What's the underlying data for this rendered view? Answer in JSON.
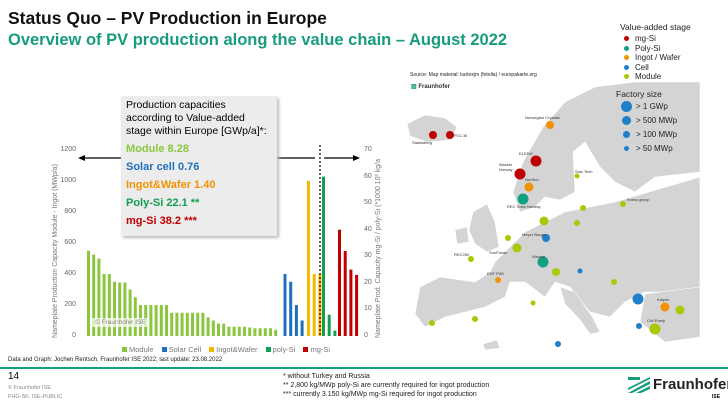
{
  "header": {
    "title": "Status Quo – PV Production in Europe",
    "subtitle": "Overview of PV production along the value chain – August 2022"
  },
  "infobox": {
    "heading": "Production capacities according to Value-added stage within Europe [GWp/a]*:",
    "module": "Module 8.28",
    "cell": "Solar cell 0.76",
    "ingot": "Ingot&Wafer 1.40",
    "poly": "Poly-Si 22.1 **",
    "mgsi": "mg-Si 38.2 ***"
  },
  "chart_data": {
    "type": "bar",
    "ylabel": "Nameplate Production Capacity Module - Ingot (MWp/a)",
    "y2label": "Nameplate Prod. Capacity mg-Si / poly-Si (*1000 10³ kg/a",
    "ylim": [
      0,
      1200
    ],
    "yticks": [
      "0",
      "200",
      "400",
      "600",
      "800",
      "1000",
      "1200"
    ],
    "y2lim": [
      0,
      70
    ],
    "y2ticks": [
      "0",
      "10",
      "20",
      "30",
      "40",
      "50",
      "60",
      "70"
    ],
    "watermark": "© Fraunhofer ISE",
    "legend_position": "bottom",
    "series": [
      {
        "name": "Module",
        "axis": "left",
        "color": "#8cc63f",
        "values": [
          550,
          525,
          500,
          400,
          400,
          350,
          345,
          345,
          300,
          250,
          200,
          200,
          200,
          200,
          200,
          200,
          150,
          150,
          150,
          150,
          150,
          150,
          150,
          120,
          100,
          80,
          80,
          60,
          60,
          60,
          60,
          55,
          50,
          50,
          50,
          50,
          40
        ]
      },
      {
        "name": "Solar Cell",
        "axis": "left",
        "color": "#1f6fbf",
        "values": [
          400,
          350,
          200,
          100
        ]
      },
      {
        "name": "Ingot&Wafer",
        "axis": "left",
        "color": "#f5b800",
        "values": [
          1000,
          400,
          400
        ]
      },
      {
        "name": "poly-Si",
        "axis": "right",
        "color": "#12a050",
        "values": [
          60,
          8,
          2
        ]
      },
      {
        "name": "mg-Si",
        "axis": "right",
        "color": "#c00000",
        "values": [
          40,
          32,
          25,
          23
        ]
      }
    ]
  },
  "caption": "Data and Graph: Jochen Rentsch, Fraunhofer ISE 2022; last update: 23.08.2022",
  "map": {
    "source": "Source: Map material: kartoxjm (fotolia) / europakarte.org",
    "labels": {
      "stakksberg": "Stakksberg",
      "pcc": "PCC BI",
      "norwegian": "Norwegian Crystals",
      "elkem": "ELKEM",
      "wacker": "Wacker Norway",
      "norsun": "NorSun",
      "rec": "REC Solar Norway",
      "salo": "Salo Tech",
      "wacker_de": "Wacker",
      "edf": "EDF PWI",
      "kness": "Kness group",
      "heckert": "Heckert",
      "meyer": "Meyer Burger",
      "recom": "RECOM",
      "sunpower": "SunPower",
      "enel": "3Sun",
      "solarday": "Solarday",
      "kalyon": "Kalyon",
      "cw": "CW Enerji"
    }
  },
  "map_legend": {
    "stage_title": "Value-added stage",
    "stages": [
      {
        "label": "mg-Si",
        "color": "#c00000"
      },
      {
        "label": "Poly-Si",
        "color": "#12a085"
      },
      {
        "label": "Ingot / Wafer",
        "color": "#f39200"
      },
      {
        "label": "Cell",
        "color": "#1f7fc8"
      },
      {
        "label": "Module",
        "color": "#a8c80a"
      }
    ],
    "size_title": "Factory size",
    "sizes": [
      "> 1 GWp",
      "> 500 MWp",
      "> 100 MWp",
      "> 50 MWp"
    ]
  },
  "footer": {
    "page": "14",
    "copyright": "© Fraunhofer ISE",
    "classification": "FHG-SK: ISE-PUBLIC",
    "notes": [
      "* without Turkey and Russia",
      "** 2,800 kg/MWp poly-Si are currently required for ingot production",
      "*** currently 3.150 kg/MWp mg-Si required for ingot production"
    ],
    "logo": "Fraunhofer",
    "logo_sub": "ISE"
  }
}
